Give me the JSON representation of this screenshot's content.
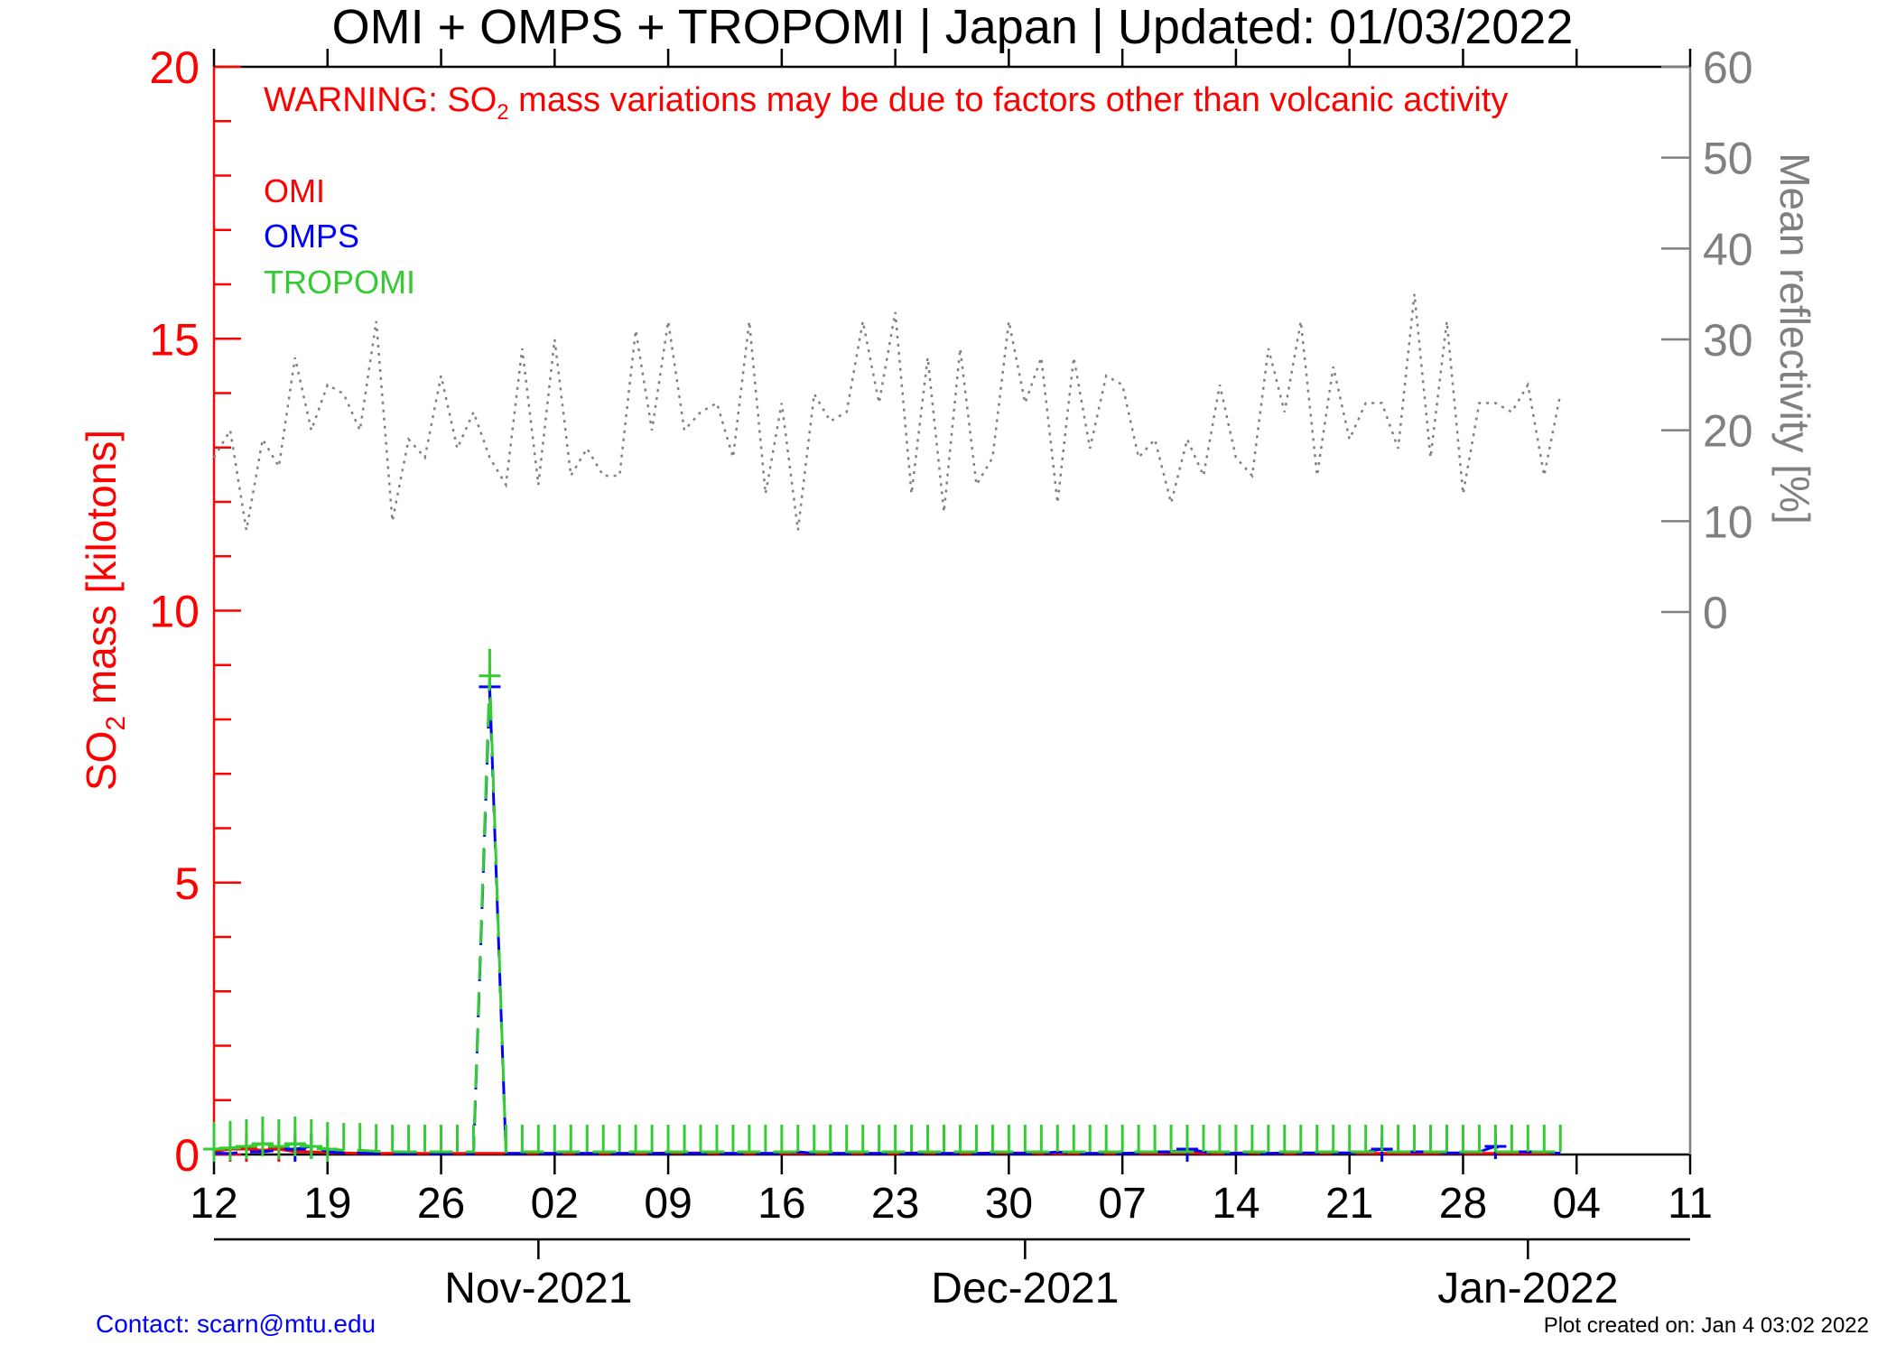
{
  "chart_data": {
    "type": "line",
    "title": "OMI + OMPS + TROPOMI | Japan | Updated: 01/03/2022",
    "warning": {
      "prefix": "WARNING: SO",
      "sub": "2",
      "suffix": " mass variations may be due to factors other than volcanic activity"
    },
    "ylabel": {
      "prefix": "SO",
      "sub": "2",
      "suffix": " mass [kilotons]"
    },
    "y2label": "Mean reflectivity [%]",
    "ylim": [
      0,
      20
    ],
    "y2lim": [
      0,
      60
    ],
    "yticks": [
      "0",
      "5",
      "10",
      "15",
      "20"
    ],
    "y2ticks": [
      "0",
      "10",
      "20",
      "30",
      "40",
      "50",
      "60"
    ],
    "x_start": "2021-10-12",
    "xlim_days": [
      0,
      91
    ],
    "xticks": [
      "12",
      "19",
      "26",
      "02",
      "09",
      "16",
      "23",
      "30",
      "07",
      "14",
      "21",
      "28",
      "04",
      "11"
    ],
    "months": [
      {
        "label": "Nov-2021",
        "day": 20
      },
      {
        "label": "Dec-2021",
        "day": 50
      },
      {
        "label": "Jan-2022",
        "day": 81
      }
    ],
    "legend": [
      {
        "name": "OMI",
        "color": "#ff0000"
      },
      {
        "name": "OMPS",
        "color": "#0000ff"
      },
      {
        "name": "TROPOMI",
        "color": "#33cc33"
      }
    ],
    "legend_position": "top-left",
    "series": [
      {
        "name": "OMI",
        "color": "#ff0000",
        "axis": "left",
        "values": [
          0.05,
          0.1,
          0.1,
          0.08,
          0.1,
          0.05,
          0.05,
          0.03,
          0.03,
          0.02,
          0.02,
          0.02,
          0.02,
          0.02,
          0.02,
          0.02,
          0.02,
          0.02,
          0.02,
          0.02,
          0.02,
          0.02,
          0.02,
          0.02,
          0.02,
          0.02,
          0.02,
          0.02,
          0.03,
          0.03,
          0.03,
          0.02,
          0.02,
          0.02,
          0.02,
          0.02,
          0.02,
          0.02,
          0.02,
          0.02,
          0.02,
          0.02,
          0.02,
          0.03,
          0.03,
          0.02,
          0.02,
          0.02,
          0.03,
          0.03,
          0.03,
          0.02,
          0.02,
          0.02,
          0.02,
          0.02,
          0.02,
          0.02,
          0.02,
          0.03,
          0.03,
          0.02,
          0.02,
          0.03,
          0.03,
          0.02,
          0.02,
          0.02,
          0.02,
          0.03,
          0.03,
          0.02,
          0.02,
          0.02,
          0.02,
          0.02,
          0.02,
          0.02,
          0.02,
          0.02,
          0.02,
          0.02,
          0.02,
          0.02
        ]
      },
      {
        "name": "OMPS",
        "color": "#0000ff",
        "axis": "left",
        "values": [
          0.02,
          0.02,
          0.05,
          0.05,
          0.08,
          0.1,
          0.15,
          0.05,
          0.03,
          0.03,
          0.02,
          0.02,
          0.02,
          0.02,
          0.02,
          0.02,
          0.02,
          8.6,
          0.02,
          0.02,
          0.02,
          0.02,
          0.02,
          0.02,
          0.02,
          0.02,
          0.02,
          0.02,
          0.02,
          0.02,
          0.02,
          0.02,
          0.02,
          0.02,
          0.02,
          0.02,
          0.05,
          0.02,
          0.02,
          0.02,
          0.02,
          0.02,
          0.02,
          0.02,
          0.02,
          0.02,
          0.02,
          0.02,
          0.02,
          0.02,
          0.02,
          0.02,
          0.05,
          0.02,
          0.02,
          0.02,
          0.02,
          0.03,
          0.05,
          0.05,
          0.1,
          0.05,
          0.02,
          0.02,
          0.02,
          0.02,
          0.03,
          0.03,
          0.03,
          0.03,
          0.03,
          0.05,
          0.1,
          0.05,
          0.05,
          0.05,
          0.03,
          0.03,
          0.05,
          0.15,
          0.05,
          0.05,
          0.05,
          0.02
        ]
      },
      {
        "name": "TROPOMI",
        "color": "#33cc33",
        "axis": "left",
        "values": [
          0.1,
          0.12,
          0.15,
          0.2,
          0.15,
          0.2,
          0.15,
          0.1,
          0.08,
          0.08,
          0.06,
          0.05,
          0.05,
          0.05,
          0.05,
          0.05,
          0.05,
          8.8,
          0.05,
          0.05,
          0.05,
          0.05,
          0.05,
          0.05,
          0.05,
          0.05,
          0.05,
          0.05,
          0.05,
          0.05,
          0.05,
          0.05,
          0.05,
          0.05,
          0.05,
          0.05,
          0.05,
          0.05,
          0.05,
          0.05,
          0.05,
          0.05,
          0.05,
          0.05,
          0.05,
          0.05,
          0.05,
          0.05,
          0.05,
          0.05,
          0.05,
          0.05,
          0.05,
          0.05,
          0.05,
          0.05,
          0.05,
          0.05,
          0.05,
          0.05,
          0.05,
          0.05,
          0.05,
          0.05,
          0.05,
          0.05,
          0.05,
          0.05,
          0.05,
          0.05,
          0.05,
          0.05,
          0.05,
          0.05,
          0.05,
          0.05,
          0.05,
          0.05,
          0.05,
          0.05,
          0.05,
          0.05,
          0.05,
          0.05
        ]
      },
      {
        "name": "Mean reflectivity",
        "color": "#808080",
        "axis": "right",
        "values": [
          17,
          20,
          9,
          19,
          16,
          28,
          20,
          25,
          24,
          20,
          32,
          10,
          19,
          17,
          26,
          18,
          22,
          17,
          14,
          29,
          14,
          30,
          15,
          18,
          15,
          15,
          31,
          20,
          32,
          20,
          22,
          23,
          17,
          32,
          13,
          23,
          9,
          24,
          21,
          22,
          32,
          23,
          33,
          13,
          28,
          11,
          29,
          14,
          17,
          32,
          23,
          28,
          12,
          28,
          18,
          26,
          25,
          17,
          19,
          12,
          19,
          15,
          25,
          17,
          15,
          29,
          22,
          32,
          15,
          27,
          19,
          23,
          23,
          18,
          35,
          17,
          32,
          13,
          23,
          23,
          22,
          25,
          15,
          24
        ]
      }
    ]
  },
  "footer": {
    "contact": "Contact: scarn@mtu.edu",
    "created": "Plot created on: Jan  4 03:02 2022"
  }
}
